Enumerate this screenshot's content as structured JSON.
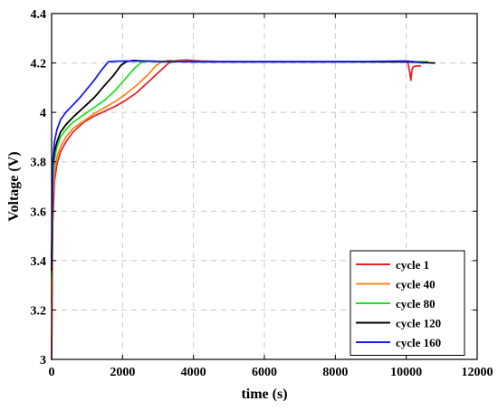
{
  "chart_data": {
    "type": "line",
    "title": "",
    "xlabel": "time (s)",
    "ylabel": "Voltage (V)",
    "xlim": [
      0,
      12000
    ],
    "ylim": [
      3.0,
      4.4
    ],
    "xticks": [
      0,
      2000,
      4000,
      6000,
      8000,
      10000,
      12000
    ],
    "xtick_labels": [
      "0",
      "2000",
      "4000",
      "6000",
      "8000",
      "10000",
      "12000"
    ],
    "yticks": [
      3.0,
      3.2,
      3.4,
      3.6,
      3.8,
      4.0,
      4.2,
      4.4
    ],
    "ytick_labels": [
      "3",
      "3.2",
      "3.4",
      "3.6",
      "3.8",
      "4",
      "4.2",
      "4.4"
    ],
    "grid": true,
    "legend_position": "bottom-right",
    "series": [
      {
        "name": "cycle 1",
        "color": "#e8232a",
        "x": [
          0,
          30,
          80,
          150,
          250,
          400,
          600,
          900,
          1200,
          1500,
          1800,
          2100,
          2400,
          2700,
          3000,
          3300,
          3500,
          3800,
          4200,
          5000,
          7000,
          9000,
          10000,
          10050,
          10100,
          10130,
          10160,
          10200,
          10300,
          10400
        ],
        "y": [
          3.0,
          3.55,
          3.72,
          3.79,
          3.84,
          3.88,
          3.92,
          3.96,
          3.985,
          4.005,
          4.025,
          4.05,
          4.08,
          4.12,
          4.16,
          4.2,
          4.21,
          4.212,
          4.208,
          4.205,
          4.205,
          4.205,
          4.205,
          4.2,
          4.16,
          4.13,
          4.17,
          4.185,
          4.188,
          4.188
        ]
      },
      {
        "name": "cycle 40",
        "color": "#f28a1b",
        "x": [
          0,
          30,
          80,
          150,
          250,
          400,
          600,
          900,
          1200,
          1500,
          1800,
          2100,
          2400,
          2700,
          2950,
          3100,
          3300,
          3800,
          5000,
          7000,
          9000,
          10200,
          10500
        ],
        "y": [
          3.23,
          3.65,
          3.76,
          3.82,
          3.86,
          3.9,
          3.935,
          3.965,
          3.995,
          4.02,
          4.045,
          4.075,
          4.11,
          4.15,
          4.19,
          4.205,
          4.21,
          4.207,
          4.205,
          4.205,
          4.205,
          4.205,
          4.205
        ]
      },
      {
        "name": "cycle 80",
        "color": "#22e022",
        "x": [
          0,
          30,
          80,
          150,
          250,
          400,
          600,
          900,
          1200,
          1500,
          1800,
          2100,
          2350,
          2550,
          2800,
          3200,
          4000,
          6000,
          8000,
          10000,
          10600
        ],
        "y": [
          3.33,
          3.73,
          3.81,
          3.86,
          3.9,
          3.93,
          3.96,
          3.99,
          4.02,
          4.05,
          4.09,
          4.14,
          4.18,
          4.205,
          4.208,
          4.206,
          4.205,
          4.205,
          4.205,
          4.205,
          4.205
        ]
      },
      {
        "name": "cycle 120",
        "color": "#000000",
        "x": [
          0,
          30,
          80,
          150,
          250,
          400,
          600,
          900,
          1200,
          1500,
          1750,
          1950,
          2100,
          2300,
          2600,
          3000,
          4000,
          6000,
          8000,
          10000,
          10800
        ],
        "y": [
          3.36,
          3.78,
          3.84,
          3.88,
          3.92,
          3.95,
          3.98,
          4.02,
          4.06,
          4.11,
          4.15,
          4.19,
          4.205,
          4.21,
          4.208,
          4.206,
          4.205,
          4.205,
          4.205,
          4.205,
          4.2
        ]
      },
      {
        "name": "cycle 160",
        "color": "#1c1cf0",
        "x": [
          0,
          30,
          80,
          150,
          250,
          400,
          600,
          800,
          1000,
          1200,
          1400,
          1600,
          1800,
          2200,
          3000,
          4000,
          6000,
          8000,
          10000,
          10200,
          10500
        ],
        "y": [
          3.38,
          3.8,
          3.88,
          3.93,
          3.97,
          4.0,
          4.03,
          4.06,
          4.095,
          4.13,
          4.17,
          4.205,
          4.207,
          4.208,
          4.206,
          4.205,
          4.205,
          4.205,
          4.208,
          4.205,
          4.2
        ]
      }
    ]
  }
}
